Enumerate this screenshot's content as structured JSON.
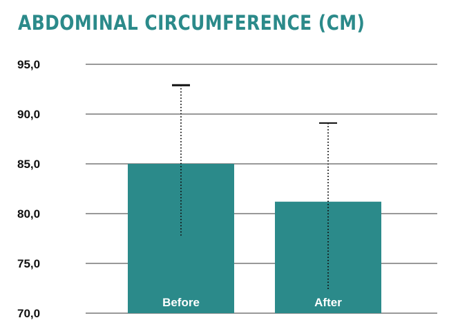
{
  "colors": {
    "accent": "#2b8a8a",
    "text": "#111111",
    "gridline": "#333333"
  },
  "chart_data": {
    "type": "bar",
    "title": "ABDOMINAL CIRCUMFERENCE (CM)",
    "categories": [
      "Before",
      "After"
    ],
    "values": [
      85.0,
      81.2
    ],
    "error_bars": [
      {
        "low": 77.8,
        "high": 92.9
      },
      {
        "low": 72.3,
        "high": 89.1
      }
    ],
    "ylim": [
      70,
      95
    ],
    "yticks": [
      95,
      90,
      85,
      80,
      75,
      70
    ],
    "ytick_labels": [
      "95,0",
      "90,0",
      "85,0",
      "80,0",
      "75,0",
      "70,0"
    ],
    "grid": true,
    "xlabel": "",
    "ylabel": ""
  }
}
